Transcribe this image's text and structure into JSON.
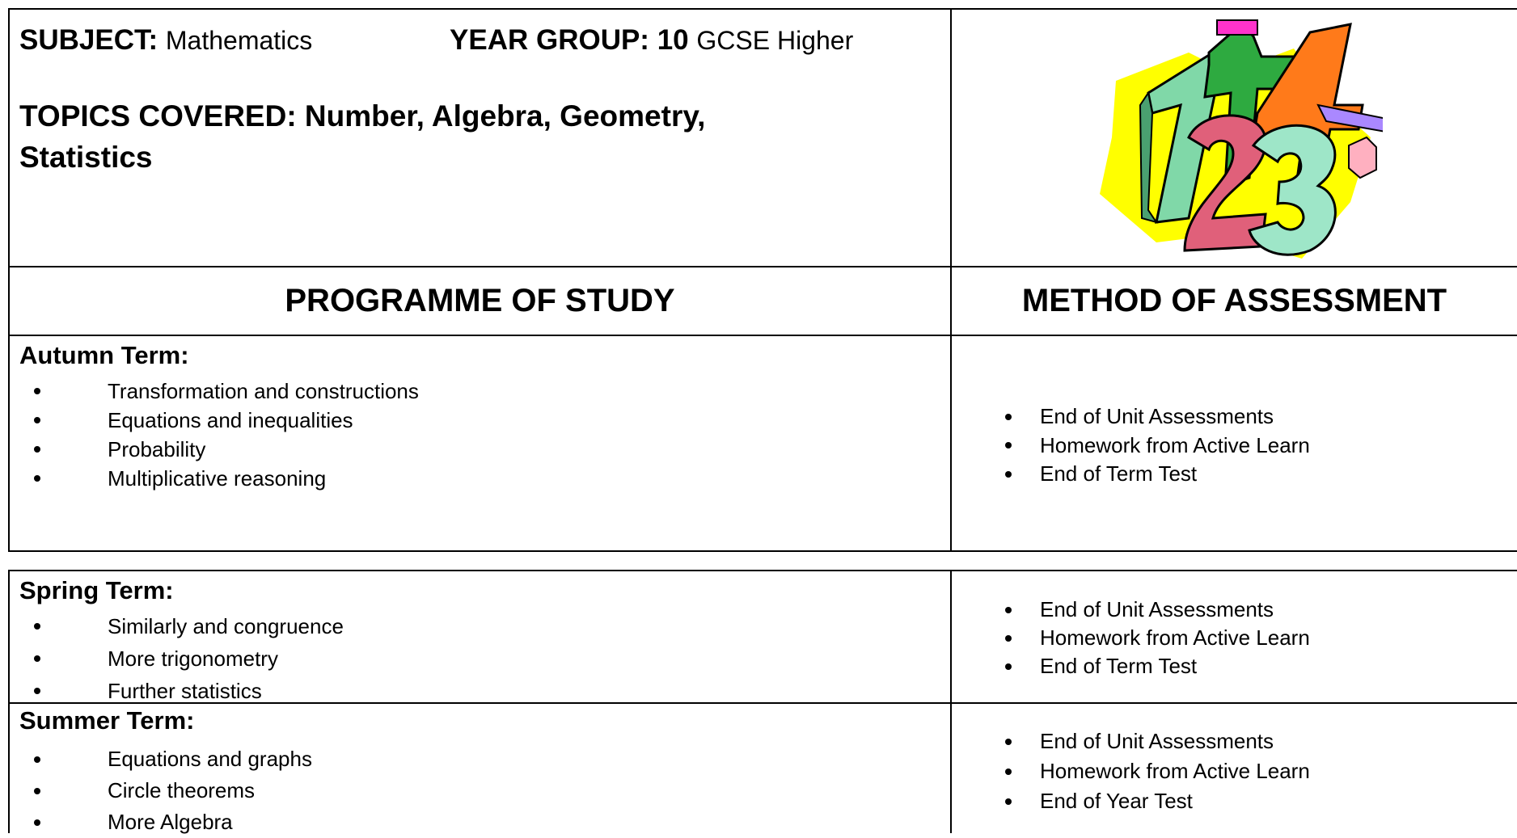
{
  "header": {
    "subject_label": "SUBJECT:",
    "subject": "Mathematics",
    "year_label": "YEAR GROUP:",
    "year": "10",
    "year_detail": "GCSE Higher",
    "topics_label": "TOPICS COVERED: Number, Algebra, Geometry,",
    "topics_cont": "Statistics"
  },
  "table": {
    "headers": [
      "PROGRAMME OF STUDY",
      "METHOD OF ASSESSMENT"
    ],
    "terms": [
      {
        "title": "Autumn Term:",
        "topics": [
          "Transformation and constructions",
          "Equations and inequalities",
          "Probability",
          "Multiplicative reasoning"
        ],
        "assessments": [
          "End of Unit Assessments",
          "Homework from Active Learn",
          "End of Term Test"
        ]
      },
      {
        "title": "Spring Term:",
        "topics": [
          "Similarly and congruence",
          "More trigonometry",
          "Further statistics"
        ],
        "assessments": [
          "End of Unit Assessments",
          "Homework from Active Learn",
          "End of Term Test"
        ]
      },
      {
        "title": "Summer Term:",
        "topics": [
          "Equations and graphs",
          "Circle theorems",
          "More Algebra"
        ],
        "assessments": [
          "End of Unit Assessments",
          "Homework from Active Learn",
          "End of Year Test"
        ]
      }
    ]
  }
}
